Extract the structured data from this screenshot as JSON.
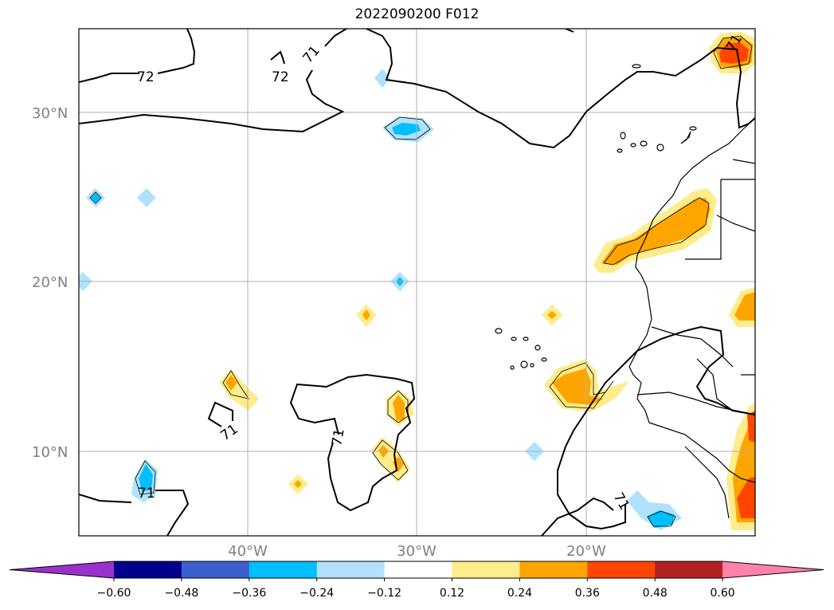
{
  "title": "2022090200 F012",
  "lat_labels": [
    "30°N",
    "20°N",
    "10°N"
  ],
  "lon_labels": [
    "40°W",
    "30°W",
    "20°W"
  ],
  "contour_labels": [
    "72",
    "72",
    "71",
    "71",
    "71",
    "71"
  ],
  "colorbar": {
    "colors": [
      "#9932cc",
      "#00008b",
      "#3a5fcd",
      "#00bfff",
      "#b0e2ff",
      "#ffffff",
      "#ffec8b",
      "#ffa500",
      "#ff4500",
      "#b22222",
      "#ff82ab"
    ],
    "tick_labels": [
      "−0.60",
      "−0.48",
      "−0.36",
      "−0.24",
      "−0.12",
      "0.12",
      "0.24",
      "0.36",
      "0.48",
      "0.60"
    ]
  },
  "grid": true,
  "colors": {
    "grid": "#b0b0b0",
    "axis_text": "#808080"
  }
}
